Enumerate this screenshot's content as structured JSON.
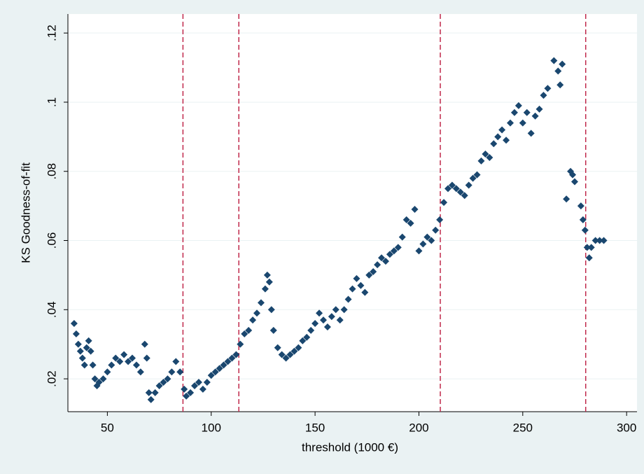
{
  "chart_data": {
    "type": "scatter",
    "x_label": "threshold (1000 €)",
    "y_label": "KS Goodness-of-fit",
    "xlim": [
      31,
      305
    ],
    "ylim": [
      0.0105,
      0.1255
    ],
    "xticks": [
      50,
      100,
      150,
      200,
      250,
      300
    ],
    "yticks": [
      {
        "value": 0.02,
        "label": ".02"
      },
      {
        "value": 0.04,
        "label": ".04"
      },
      {
        "value": 0.06,
        "label": ".06"
      },
      {
        "value": 0.08,
        "label": ".08"
      },
      {
        "value": 0.1,
        "label": ".1"
      },
      {
        "value": 0.12,
        "label": ".12"
      }
    ],
    "grid": true,
    "color": "#1a476f",
    "vline_color": "#c0284a",
    "vlines": [
      86.4,
      113.3,
      210.3,
      280.3
    ],
    "x": [
      34,
      35,
      36,
      37,
      38,
      39,
      40,
      41,
      42,
      43,
      44,
      45,
      46,
      48,
      50,
      52,
      54,
      56,
      58,
      60,
      62,
      64,
      66,
      68,
      69,
      70,
      71,
      73,
      75,
      77,
      79,
      81,
      83,
      85,
      87,
      88,
      90,
      92,
      94,
      96,
      98,
      100,
      102,
      104,
      106,
      108,
      110,
      112,
      114,
      116,
      118,
      120,
      122,
      124,
      126,
      127,
      128,
      129,
      130,
      132,
      134,
      136,
      138,
      140,
      142,
      144,
      146,
      148,
      150,
      152,
      154,
      156,
      158,
      160,
      162,
      164,
      166,
      168,
      170,
      172,
      174,
      176,
      178,
      180,
      182,
      184,
      186,
      188,
      190,
      192,
      194,
      196,
      198,
      200,
      202,
      204,
      206,
      208,
      210,
      212,
      214,
      216,
      218,
      220,
      222,
      224,
      226,
      228,
      230,
      232,
      234,
      236,
      238,
      240,
      242,
      244,
      246,
      248,
      250,
      252,
      254,
      256,
      258,
      260,
      262,
      265,
      267,
      268,
      269,
      271,
      273,
      274,
      275,
      278,
      279,
      280,
      281,
      282,
      283,
      285,
      287,
      289
    ],
    "y": [
      0.036,
      0.033,
      0.03,
      0.028,
      0.026,
      0.024,
      0.029,
      0.031,
      0.028,
      0.024,
      0.02,
      0.018,
      0.019,
      0.02,
      0.022,
      0.024,
      0.026,
      0.025,
      0.027,
      0.025,
      0.026,
      0.024,
      0.022,
      0.03,
      0.026,
      0.016,
      0.014,
      0.016,
      0.018,
      0.019,
      0.02,
      0.022,
      0.025,
      0.022,
      0.017,
      0.015,
      0.016,
      0.018,
      0.019,
      0.017,
      0.019,
      0.021,
      0.022,
      0.023,
      0.024,
      0.025,
      0.026,
      0.027,
      0.03,
      0.033,
      0.034,
      0.037,
      0.039,
      0.042,
      0.046,
      0.05,
      0.048,
      0.04,
      0.034,
      0.029,
      0.027,
      0.026,
      0.027,
      0.028,
      0.029,
      0.031,
      0.032,
      0.034,
      0.036,
      0.039,
      0.037,
      0.035,
      0.038,
      0.04,
      0.037,
      0.04,
      0.043,
      0.046,
      0.049,
      0.047,
      0.045,
      0.05,
      0.051,
      0.053,
      0.055,
      0.054,
      0.056,
      0.057,
      0.058,
      0.061,
      0.066,
      0.065,
      0.069,
      0.057,
      0.059,
      0.061,
      0.06,
      0.063,
      0.066,
      0.071,
      0.075,
      0.076,
      0.075,
      0.074,
      0.073,
      0.076,
      0.078,
      0.079,
      0.083,
      0.085,
      0.084,
      0.088,
      0.09,
      0.092,
      0.089,
      0.094,
      0.097,
      0.099,
      0.094,
      0.097,
      0.091,
      0.096,
      0.098,
      0.102,
      0.104,
      0.112,
      0.109,
      0.105,
      0.111,
      0.072,
      0.08,
      0.079,
      0.077,
      0.07,
      0.066,
      0.063,
      0.058,
      0.055,
      0.058,
      0.06,
      0.06,
      0.06
    ]
  }
}
